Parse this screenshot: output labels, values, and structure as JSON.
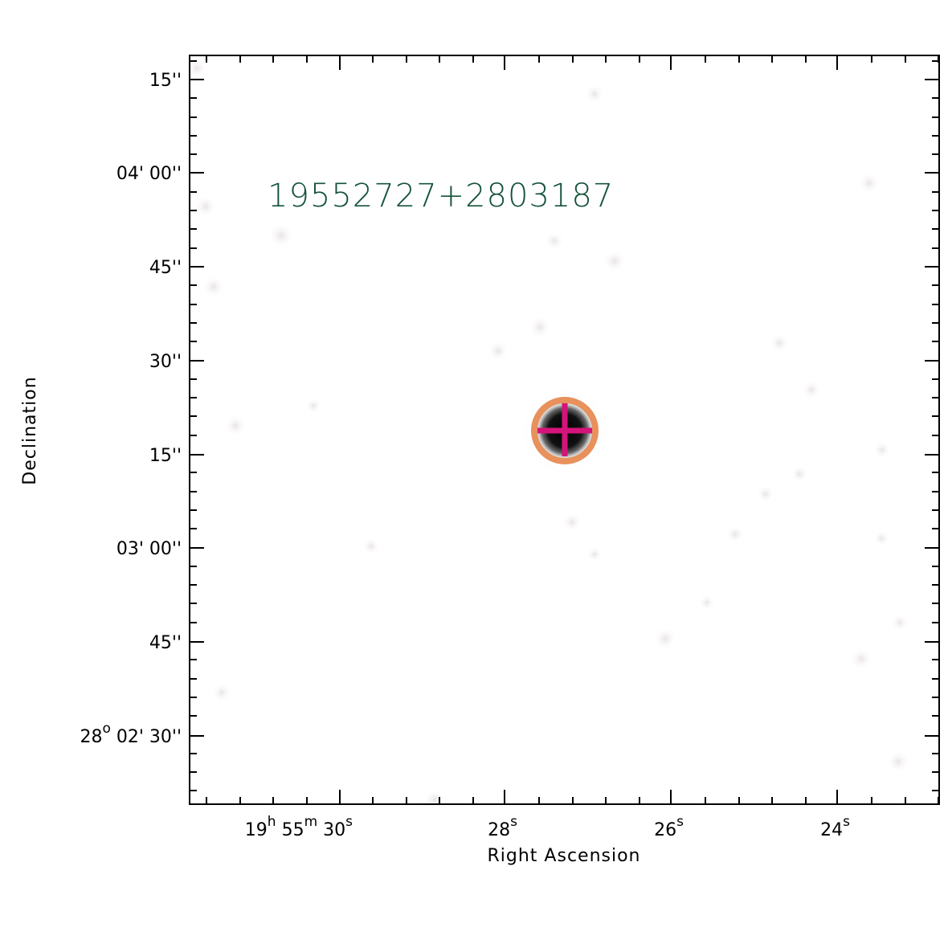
{
  "target_id": "19552727+2803187",
  "colors": {
    "label_color": "#15533a",
    "circle_color": "#e8915c",
    "cross_color": "#d4147a",
    "frame_color": "#000000"
  },
  "axes": {
    "x_title": "Right Ascension",
    "y_title": "Declination",
    "x_ticks": [
      {
        "prefix": "19",
        "h": "h",
        "mid": " 55",
        "m": "m",
        "value": " 30",
        "s": "s"
      },
      {
        "prefix": "",
        "h": "",
        "mid": "",
        "m": "",
        "value": "28",
        "s": "s"
      },
      {
        "prefix": "",
        "h": "",
        "mid": "",
        "m": "",
        "value": "26",
        "s": "s"
      },
      {
        "prefix": "",
        "h": "",
        "mid": "",
        "m": "",
        "value": "24",
        "s": "s"
      }
    ],
    "y_ticks": [
      {
        "deg": "",
        "text": "15''"
      },
      {
        "deg": "",
        "text": "04' 00''"
      },
      {
        "deg": "",
        "text": "45''"
      },
      {
        "deg": "",
        "text": "30''"
      },
      {
        "deg": "",
        "text": "15''"
      },
      {
        "deg": "",
        "text": "03' 00''"
      },
      {
        "deg": "",
        "text": "45''"
      },
      {
        "deg": "28",
        "text": " 02' 30''"
      }
    ],
    "degree_mark": "o"
  }
}
